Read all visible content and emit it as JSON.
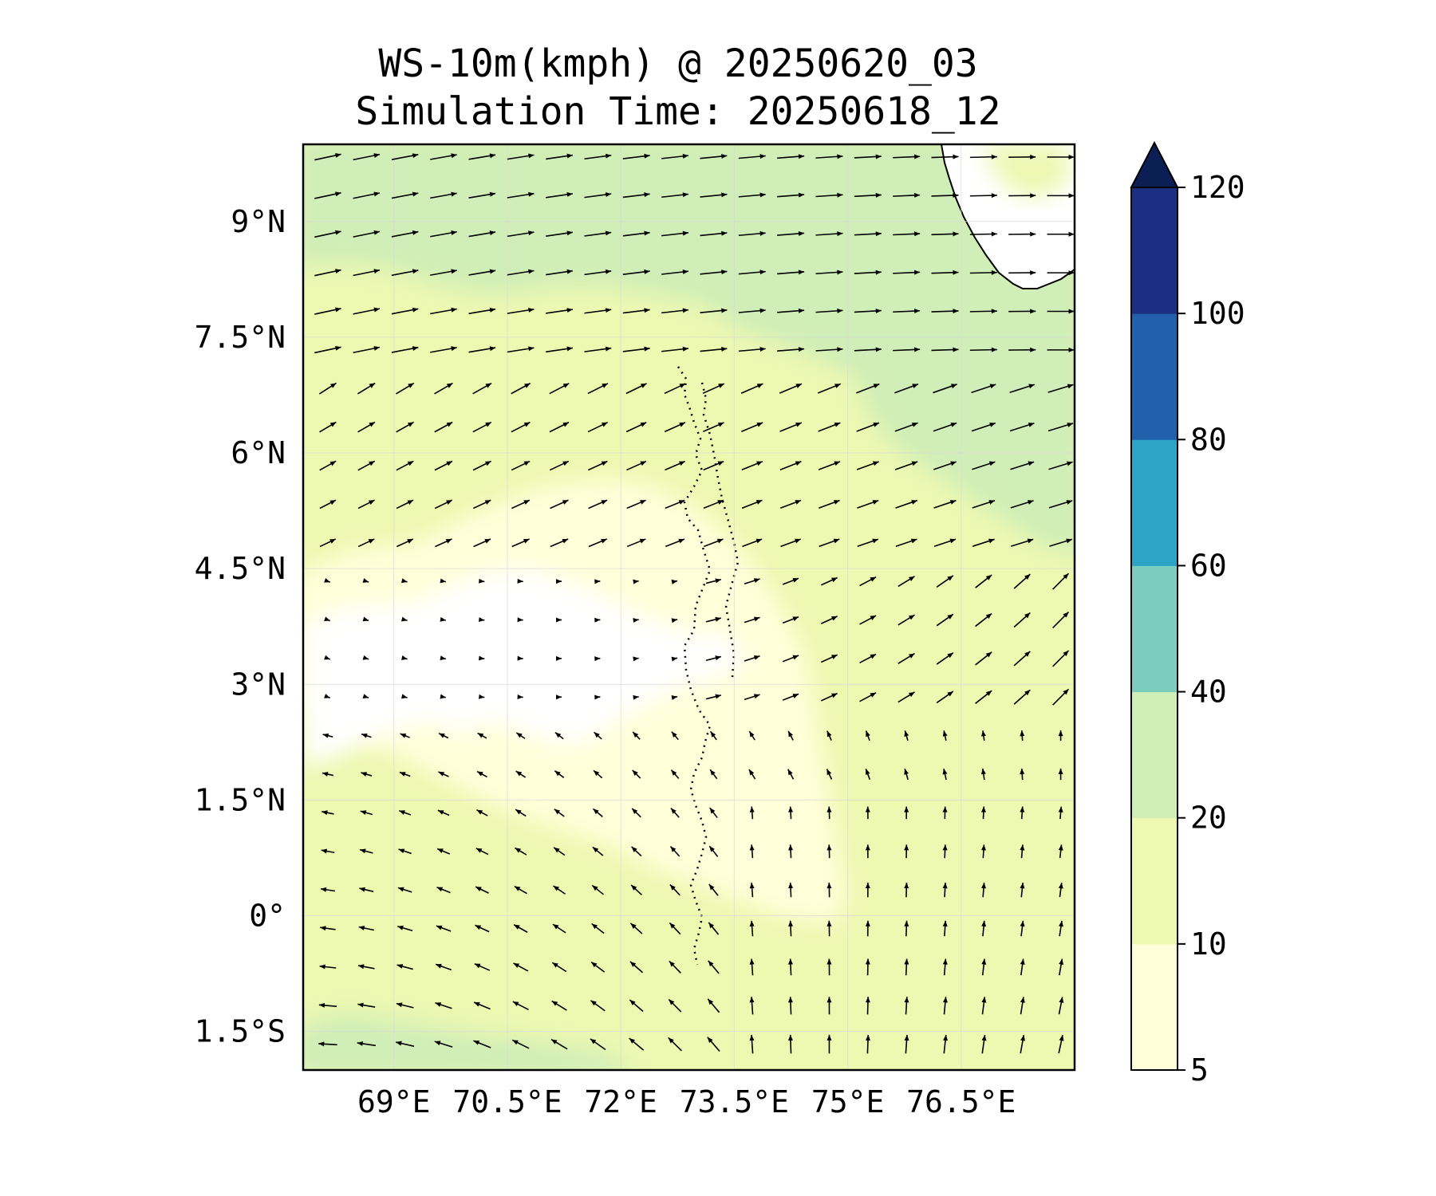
{
  "title": {
    "line1": "WS-10m(kmph) @ 20250620_03",
    "line2": "Simulation Time: 20250618_12"
  },
  "map": {
    "lon_range": [
      67.8,
      78.0
    ],
    "lat_range": [
      -2.0,
      10.0
    ],
    "lon_ticks": [
      {
        "value": 69.0,
        "label": "69°E"
      },
      {
        "value": 70.5,
        "label": "70.5°E"
      },
      {
        "value": 72.0,
        "label": "72°E"
      },
      {
        "value": 73.5,
        "label": "73.5°E"
      },
      {
        "value": 75.0,
        "label": "75°E"
      },
      {
        "value": 76.5,
        "label": "76.5°E"
      }
    ],
    "lat_ticks": [
      {
        "value": 9.0,
        "label": "9°N"
      },
      {
        "value": 7.5,
        "label": "7.5°N"
      },
      {
        "value": 6.0,
        "label": "6°N"
      },
      {
        "value": 4.5,
        "label": "4.5°N"
      },
      {
        "value": 3.0,
        "label": "3°N"
      },
      {
        "value": 1.5,
        "label": "1.5°N"
      },
      {
        "value": 0.0,
        "label": "0°"
      },
      {
        "value": -1.5,
        "label": "1.5°S"
      }
    ]
  },
  "colorbar": {
    "levels": [
      {
        "value": 5,
        "label": "5"
      },
      {
        "value": 10,
        "label": "10"
      },
      {
        "value": 20,
        "label": "20"
      },
      {
        "value": 40,
        "label": "40"
      },
      {
        "value": 60,
        "label": "60"
      },
      {
        "value": 80,
        "label": "80"
      },
      {
        "value": 100,
        "label": "100"
      },
      {
        "value": 120,
        "label": "120"
      }
    ],
    "colors": [
      "#ffffd9",
      "#edf8b1",
      "#d0eeb7",
      "#7dcdbe",
      "#2da3c6",
      "#2161ac",
      "#1b2e82"
    ],
    "extend_color": "#0c1f55"
  },
  "palette": {
    "below_min": "#ffffff",
    "land": "#ffffff",
    "vector": "#000000",
    "coast": "#000000"
  }
}
